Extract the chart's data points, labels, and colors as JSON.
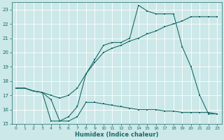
{
  "xlabel": "Humidex (Indice chaleur)",
  "bg_color": "#cce8e8",
  "grid_color": "#ffffff",
  "line_color": "#1a6b6b",
  "xlim": [
    -0.5,
    23.5
  ],
  "ylim": [
    15,
    23.5
  ],
  "yticks": [
    15,
    16,
    17,
    18,
    19,
    20,
    21,
    22,
    23
  ],
  "xticks": [
    0,
    1,
    2,
    3,
    4,
    5,
    6,
    7,
    8,
    9,
    10,
    11,
    12,
    13,
    14,
    15,
    16,
    17,
    18,
    19,
    20,
    21,
    22,
    23
  ],
  "s1x": [
    0,
    1,
    2,
    3,
    4,
    5,
    6,
    7,
    8,
    9,
    10,
    11,
    12,
    13,
    14,
    15,
    16,
    17,
    18,
    19,
    20,
    21,
    22,
    23
  ],
  "s1y": [
    17.5,
    17.5,
    17.3,
    17.2,
    15.2,
    15.2,
    15.5,
    16.2,
    18.5,
    19.5,
    20.5,
    20.7,
    20.7,
    21.0,
    23.3,
    22.9,
    22.7,
    22.7,
    22.7,
    20.4,
    19.0,
    17.0,
    15.7,
    15.7
  ],
  "s2x": [
    0,
    1,
    2,
    3,
    4,
    5,
    6,
    7,
    8,
    9,
    10,
    11,
    12,
    13,
    14,
    15,
    16,
    17,
    18,
    19,
    20,
    21,
    22,
    23
  ],
  "s2y": [
    17.5,
    17.5,
    17.3,
    17.2,
    17.0,
    16.8,
    17.0,
    17.5,
    18.5,
    19.3,
    20.0,
    20.3,
    20.5,
    20.8,
    21.0,
    21.3,
    21.5,
    21.8,
    22.0,
    22.2,
    22.5,
    22.5,
    22.5,
    22.5
  ],
  "s3x": [
    0,
    1,
    2,
    3,
    4,
    5,
    6,
    7,
    8,
    9,
    10,
    11,
    12,
    13,
    14,
    15,
    16,
    17,
    18,
    19,
    20,
    21,
    22,
    23
  ],
  "s3y": [
    17.5,
    17.5,
    17.3,
    17.2,
    16.7,
    15.2,
    15.2,
    15.5,
    16.5,
    16.5,
    16.4,
    16.3,
    16.2,
    16.1,
    16.0,
    16.0,
    16.0,
    15.9,
    15.9,
    15.8,
    15.8,
    15.8,
    15.8,
    15.7
  ]
}
